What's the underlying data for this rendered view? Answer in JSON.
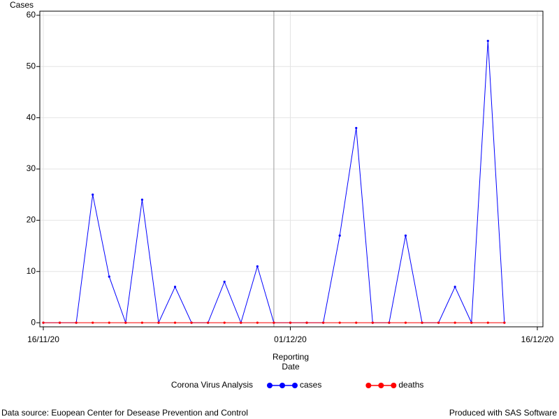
{
  "chart_data": {
    "type": "line",
    "y_label": "Cases",
    "x_label": [
      "Reporting",
      "Date"
    ],
    "legend_title": "Corona Virus Analysis",
    "x": [
      "16/11/20",
      "17/11/20",
      "18/11/20",
      "19/11/20",
      "20/11/20",
      "21/11/20",
      "22/11/20",
      "23/11/20",
      "24/11/20",
      "25/11/20",
      "26/11/20",
      "27/11/20",
      "28/11/20",
      "29/11/20",
      "30/11/20",
      "01/12/20",
      "02/12/20",
      "03/12/20",
      "04/12/20",
      "05/12/20",
      "06/12/20",
      "07/12/20",
      "08/12/20",
      "09/12/20",
      "10/12/20",
      "11/12/20",
      "12/12/20",
      "13/12/20",
      "14/12/20"
    ],
    "series": [
      {
        "name": "cases",
        "color": "#0000ff",
        "values": [
          0,
          0,
          0,
          25,
          9,
          0,
          24,
          0,
          7,
          0,
          0,
          8,
          0,
          11,
          0,
          0,
          0,
          0,
          17,
          38,
          0,
          0,
          17,
          0,
          0,
          7,
          0,
          55,
          0
        ]
      },
      {
        "name": "deaths",
        "color": "#ff0000",
        "values": [
          0,
          0,
          0,
          0,
          0,
          0,
          0,
          0,
          0,
          0,
          0,
          0,
          0,
          0,
          0,
          0,
          0,
          0,
          0,
          0,
          0,
          0,
          0,
          0,
          0,
          0,
          0,
          0,
          0
        ]
      }
    ],
    "xlim": [
      "16/11/20",
      "16/12/20"
    ],
    "xticks": [
      "16/11/20",
      "01/12/20",
      "16/12/20"
    ],
    "ylim": [
      -0.8,
      60.8
    ],
    "yticks": [
      0,
      10,
      20,
      30,
      40,
      50,
      60
    ],
    "reference_line": "30/11/20",
    "grid": true,
    "footnote_left": "Data source: Euopean Center for Desease Prevention and Control",
    "footnote_right": "Produced with SAS Software"
  }
}
